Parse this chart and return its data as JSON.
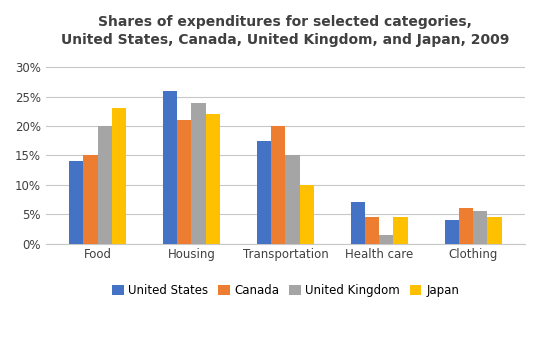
{
  "title": "Shares of expenditures for selected categories,\nUnited States, Canada, United Kingdom, and Japan, 2009",
  "categories": [
    "Food",
    "Housing",
    "Transportation",
    "Health care",
    "Clothing"
  ],
  "countries": [
    "United States",
    "Canada",
    "United Kingdom",
    "Japan"
  ],
  "colors": [
    "#4472C4",
    "#ED7D31",
    "#A5A5A5",
    "#FFC000"
  ],
  "values": {
    "United States": [
      14,
      26,
      17.5,
      7,
      4
    ],
    "Canada": [
      15,
      21,
      20,
      4.5,
      6
    ],
    "United Kingdom": [
      20,
      24,
      15,
      1.5,
      5.5
    ],
    "Japan": [
      23,
      22,
      10,
      4.5,
      4.5
    ]
  },
  "ylim": [
    0,
    32
  ],
  "yticks": [
    0,
    5,
    10,
    15,
    20,
    25,
    30
  ],
  "ytick_labels": [
    "0%",
    "5%",
    "10%",
    "15%",
    "20%",
    "25%",
    "30%"
  ],
  "bar_width": 0.15,
  "title_fontsize": 10,
  "tick_fontsize": 8.5,
  "legend_fontsize": 8.5,
  "background_color": "#FFFFFF",
  "grid_color": "#C8C8C8",
  "title_color": "#404040",
  "tick_color": "#404040"
}
